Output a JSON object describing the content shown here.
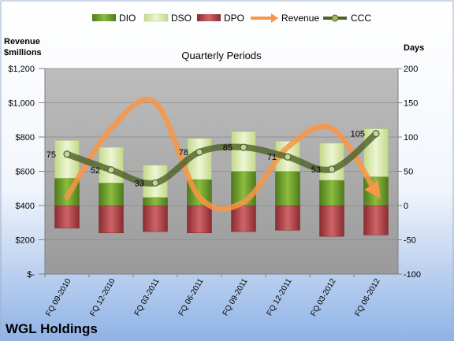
{
  "chart_data": {
    "type": "bar",
    "title": "Quarterly Periods",
    "company": "WGL Holdings",
    "left_axis_label": "Revenue $millions",
    "left_axis_label_lines": [
      "Revenue",
      "$millions"
    ],
    "right_axis_label": "Days",
    "categories": [
      "FQ 09-2010",
      "FQ 12-2010",
      "FQ 03-2011",
      "FQ 06-2011",
      "FQ 09-2011",
      "FQ 12-2011",
      "FQ 03-2012",
      "FQ 06-2012"
    ],
    "left_axis": {
      "min": 0,
      "max": 1200,
      "ticks": [
        "$-",
        "$200",
        "$400",
        "$600",
        "$800",
        "$1,000",
        "$1,200"
      ]
    },
    "right_axis": {
      "min": -100,
      "max": 200,
      "ticks": [
        "-100",
        "-50",
        "0",
        "50",
        "100",
        "150",
        "200"
      ]
    },
    "series": [
      {
        "name": "DIO",
        "type": "stacked_bar",
        "axis": "right",
        "color": "#6a9a2a",
        "values": [
          40,
          33,
          12,
          38,
          50,
          50,
          37,
          42
        ]
      },
      {
        "name": "DSO",
        "type": "stacked_bar",
        "axis": "right",
        "color": "#d6e7a4",
        "values": [
          55,
          52,
          47,
          60,
          58,
          44,
          54,
          70
        ]
      },
      {
        "name": "DPO",
        "type": "stacked_bar",
        "axis": "right",
        "color": "#b8474b",
        "values": [
          -33,
          -40,
          -38,
          -40,
          -38,
          -36,
          -45,
          -43
        ]
      },
      {
        "name": "Revenue",
        "type": "line",
        "axis": "left",
        "color": "#f79646",
        "values": [
          450,
          850,
          1000,
          450,
          420,
          740,
          850,
          480
        ]
      },
      {
        "name": "CCC",
        "type": "line",
        "axis": "right",
        "color": "#4f6228",
        "values": [
          75,
          52,
          33,
          78,
          85,
          71,
          53,
          105
        ]
      }
    ],
    "ccc_labels": [
      "75",
      "52",
      "33",
      "78",
      "85",
      "71",
      "53",
      "105"
    ],
    "grid": true,
    "legend_position": "top",
    "colors": {
      "background_top": "#ffffff",
      "background_bottom": "#8fb2e6",
      "plot_background": "#a6a6a6"
    }
  }
}
